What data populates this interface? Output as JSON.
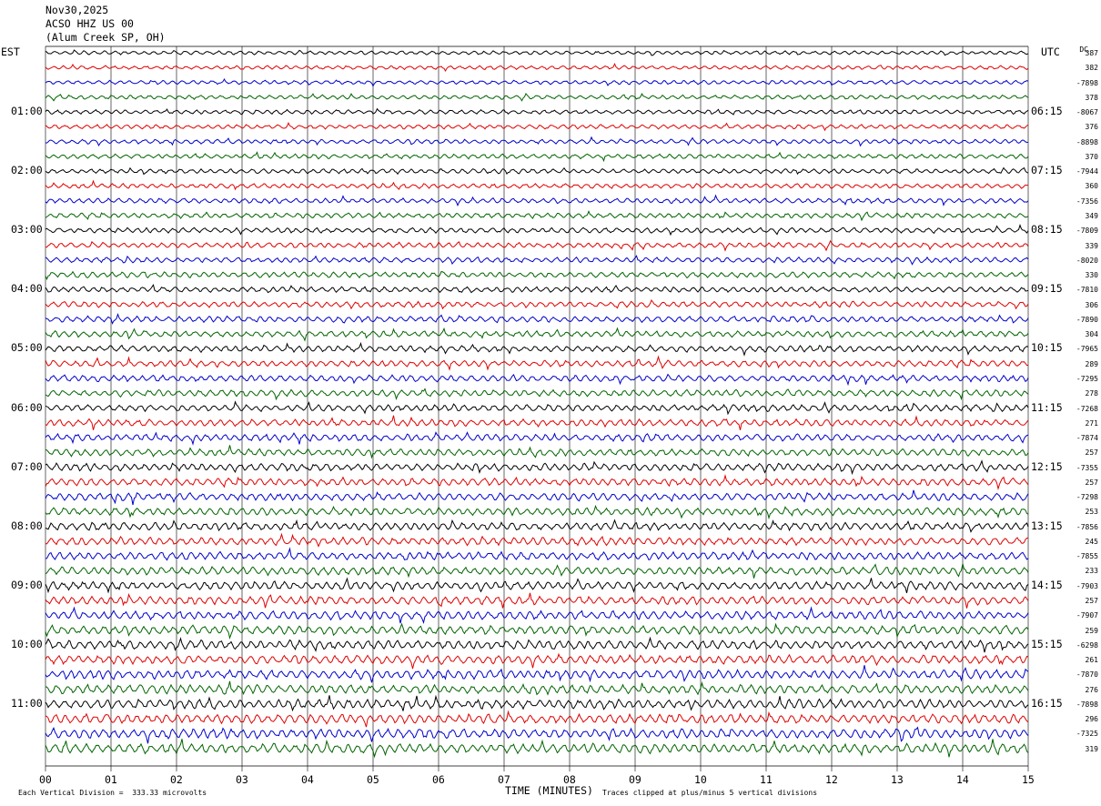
{
  "header": {
    "date": "Nov30,2025",
    "station": "ACSO HHZ US 00",
    "location": "(Alum Creek SP, OH)"
  },
  "left_timezone": "EST",
  "right_timezone": "UTC",
  "dc_header": "DC",
  "colors": {
    "trace_cycle": [
      "#000000",
      "#e00000",
      "#0000cc",
      "#006400"
    ],
    "grid": "#000000",
    "background": "#ffffff"
  },
  "footer": {
    "scale_note": "Each Vertical Division =  333.33 microvolts",
    "clip_note": "Traces clipped at plus/minus 5 vertical divisions"
  },
  "chart_data": {
    "type": "line",
    "title": "",
    "xlabel": "TIME (MINUTES)",
    "ylabel": "",
    "xlim": [
      0,
      15
    ],
    "x_ticks": [
      "00",
      "01",
      "02",
      "03",
      "04",
      "05",
      "06",
      "07",
      "08",
      "09",
      "10",
      "11",
      "12",
      "13",
      "14",
      "15"
    ],
    "left_hour_labels": [
      "01:00",
      "02:00",
      "03:00",
      "04:00",
      "05:00",
      "06:00",
      "07:00",
      "08:00",
      "09:00",
      "10:00",
      "11:00"
    ],
    "right_hour_labels": [
      "06:15",
      "07:15",
      "08:15",
      "09:15",
      "10:15",
      "11:15",
      "12:15",
      "13:15",
      "14:15",
      "15:15",
      "16:15"
    ],
    "trace_count": 48,
    "traces_per_hour": 4,
    "dc_offsets": [
      "387",
      "382",
      "-7898",
      "378",
      "-8067",
      "376",
      "-8898",
      "370",
      "-7944",
      "360",
      "-7356",
      "349",
      "-7809",
      "339",
      "-8020",
      "330",
      "-7810",
      "306",
      "-7890",
      "304",
      "-7965",
      "289",
      "-7295",
      "278",
      "-7268",
      "271",
      "-7874",
      "257",
      "-7355",
      "257",
      "-7298",
      "253",
      "-7856",
      "245",
      "-7855",
      "233",
      "-7903",
      "257",
      "-7907",
      "259",
      "-6298",
      "261",
      "-7870",
      "276",
      "-7898",
      "296",
      "-7325",
      "319"
    ]
  }
}
